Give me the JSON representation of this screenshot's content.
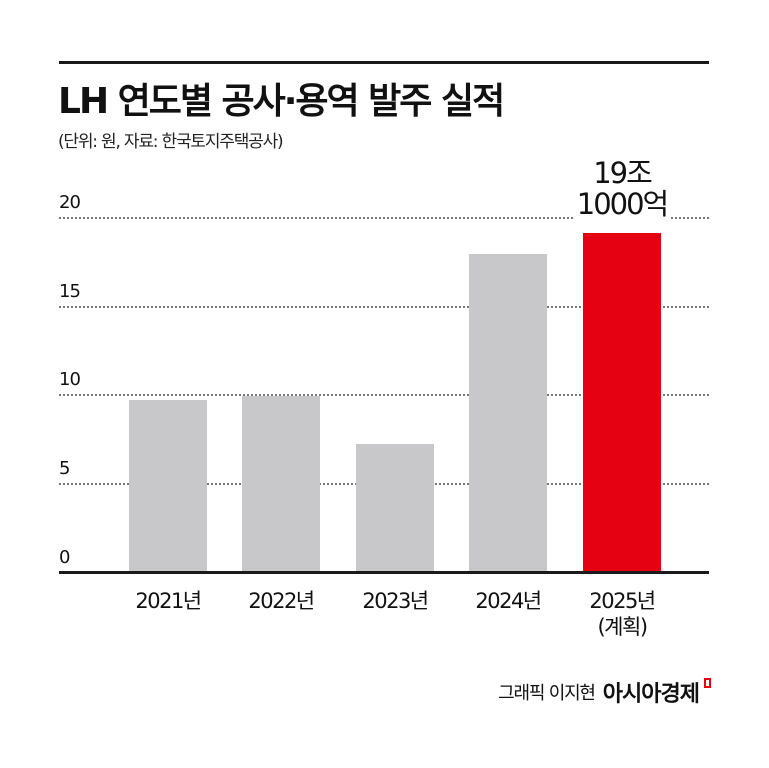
{
  "header": {
    "title": "LH 연도별 공사·용역 발주 실적",
    "subtitle": "(단위: 원, 자료: 한국토지주택공사)"
  },
  "axis": {
    "yticks": [
      "0",
      "5",
      "10",
      "15",
      "20"
    ]
  },
  "bars": [
    {
      "label": "2021년",
      "sublabel": "",
      "value": 9.7,
      "color": "#c8c8ca"
    },
    {
      "label": "2022년",
      "sublabel": "",
      "value": 9.9,
      "color": "#c8c8ca"
    },
    {
      "label": "2023년",
      "sublabel": "",
      "value": 7.2,
      "color": "#c8c8ca"
    },
    {
      "label": "2024년",
      "sublabel": "",
      "value": 17.9,
      "color": "#c8c8ca"
    },
    {
      "label": "2025년",
      "sublabel": "(계획)",
      "value": 19.1,
      "color": "#e50012"
    }
  ],
  "annotation": {
    "line1": "19조",
    "line2": "1000억"
  },
  "footer": {
    "credit": "그래픽 이지현",
    "brand": "아시아경제"
  },
  "colors": {
    "accent": "#e50012",
    "bar": "#c8c8ca",
    "text": "#111111"
  },
  "chart_data": {
    "type": "bar",
    "title": "LH 연도별 공사·용역 발주 실적",
    "subtitle": "(단위: 원, 자료: 한국토지주택공사)",
    "categories": [
      "2021년",
      "2022년",
      "2023년",
      "2024년",
      "2025년(계획)"
    ],
    "values": [
      9.7,
      9.9,
      7.2,
      17.9,
      19.1
    ],
    "unit": "조 원",
    "xlabel": "",
    "ylabel": "",
    "ylim": [
      0,
      20
    ],
    "yticks": [
      0,
      5,
      10,
      15,
      20
    ],
    "grid": "horizontal dotted",
    "annotations": [
      {
        "category": "2025년(계획)",
        "text": "19조 1000억"
      }
    ],
    "highlight": {
      "category": "2025년(계획)",
      "color": "#e50012"
    },
    "legend": null
  }
}
